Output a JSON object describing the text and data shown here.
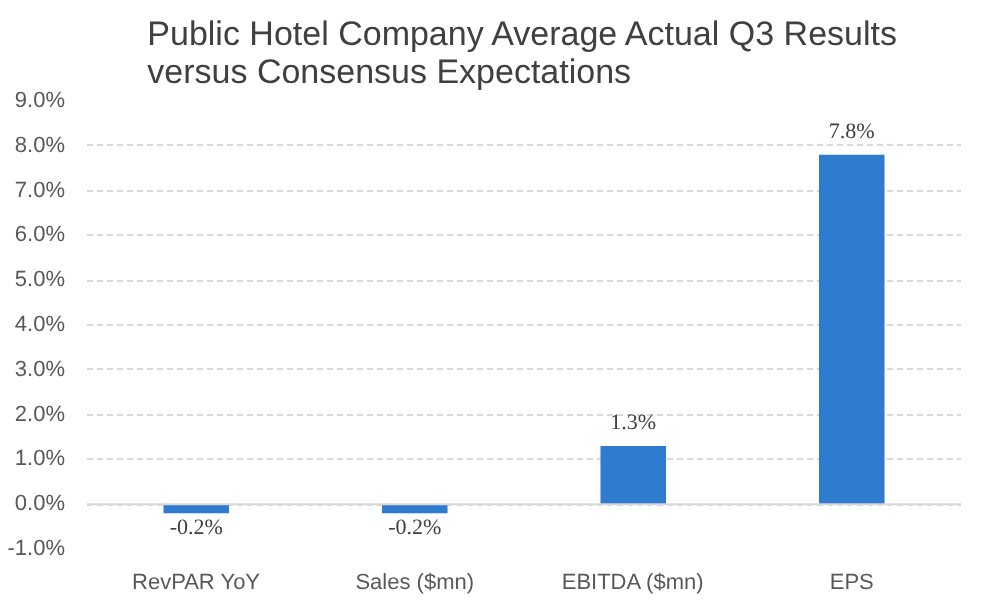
{
  "chart_data": {
    "type": "bar",
    "title": "Public Hotel Company Average Actual Q3 Results\nversus Consensus Expectations",
    "categories": [
      "RevPAR YoY",
      "Sales ($mn)",
      "EBITDA ($mn)",
      "EPS"
    ],
    "values": [
      -0.2,
      -0.2,
      1.3,
      7.8
    ],
    "value_labels": [
      "-0.2%",
      "-0.2%",
      "1.3%",
      "7.8%"
    ],
    "color": "#2e7bcf",
    "ylim": [
      -1,
      9
    ],
    "yticks": [
      {
        "value": -1,
        "label": "-1.0%"
      },
      {
        "value": 0,
        "label": "0.0%"
      },
      {
        "value": 1,
        "label": "1.0%"
      },
      {
        "value": 2,
        "label": "2.0%"
      },
      {
        "value": 3,
        "label": "3.0%"
      },
      {
        "value": 4,
        "label": "4.0%"
      },
      {
        "value": 5,
        "label": "5.0%"
      },
      {
        "value": 6,
        "label": "6.0%"
      },
      {
        "value": 7,
        "label": "7.0%"
      },
      {
        "value": 8,
        "label": "8.0%"
      },
      {
        "value": 9,
        "label": "9.0%"
      }
    ],
    "grid": "y"
  }
}
